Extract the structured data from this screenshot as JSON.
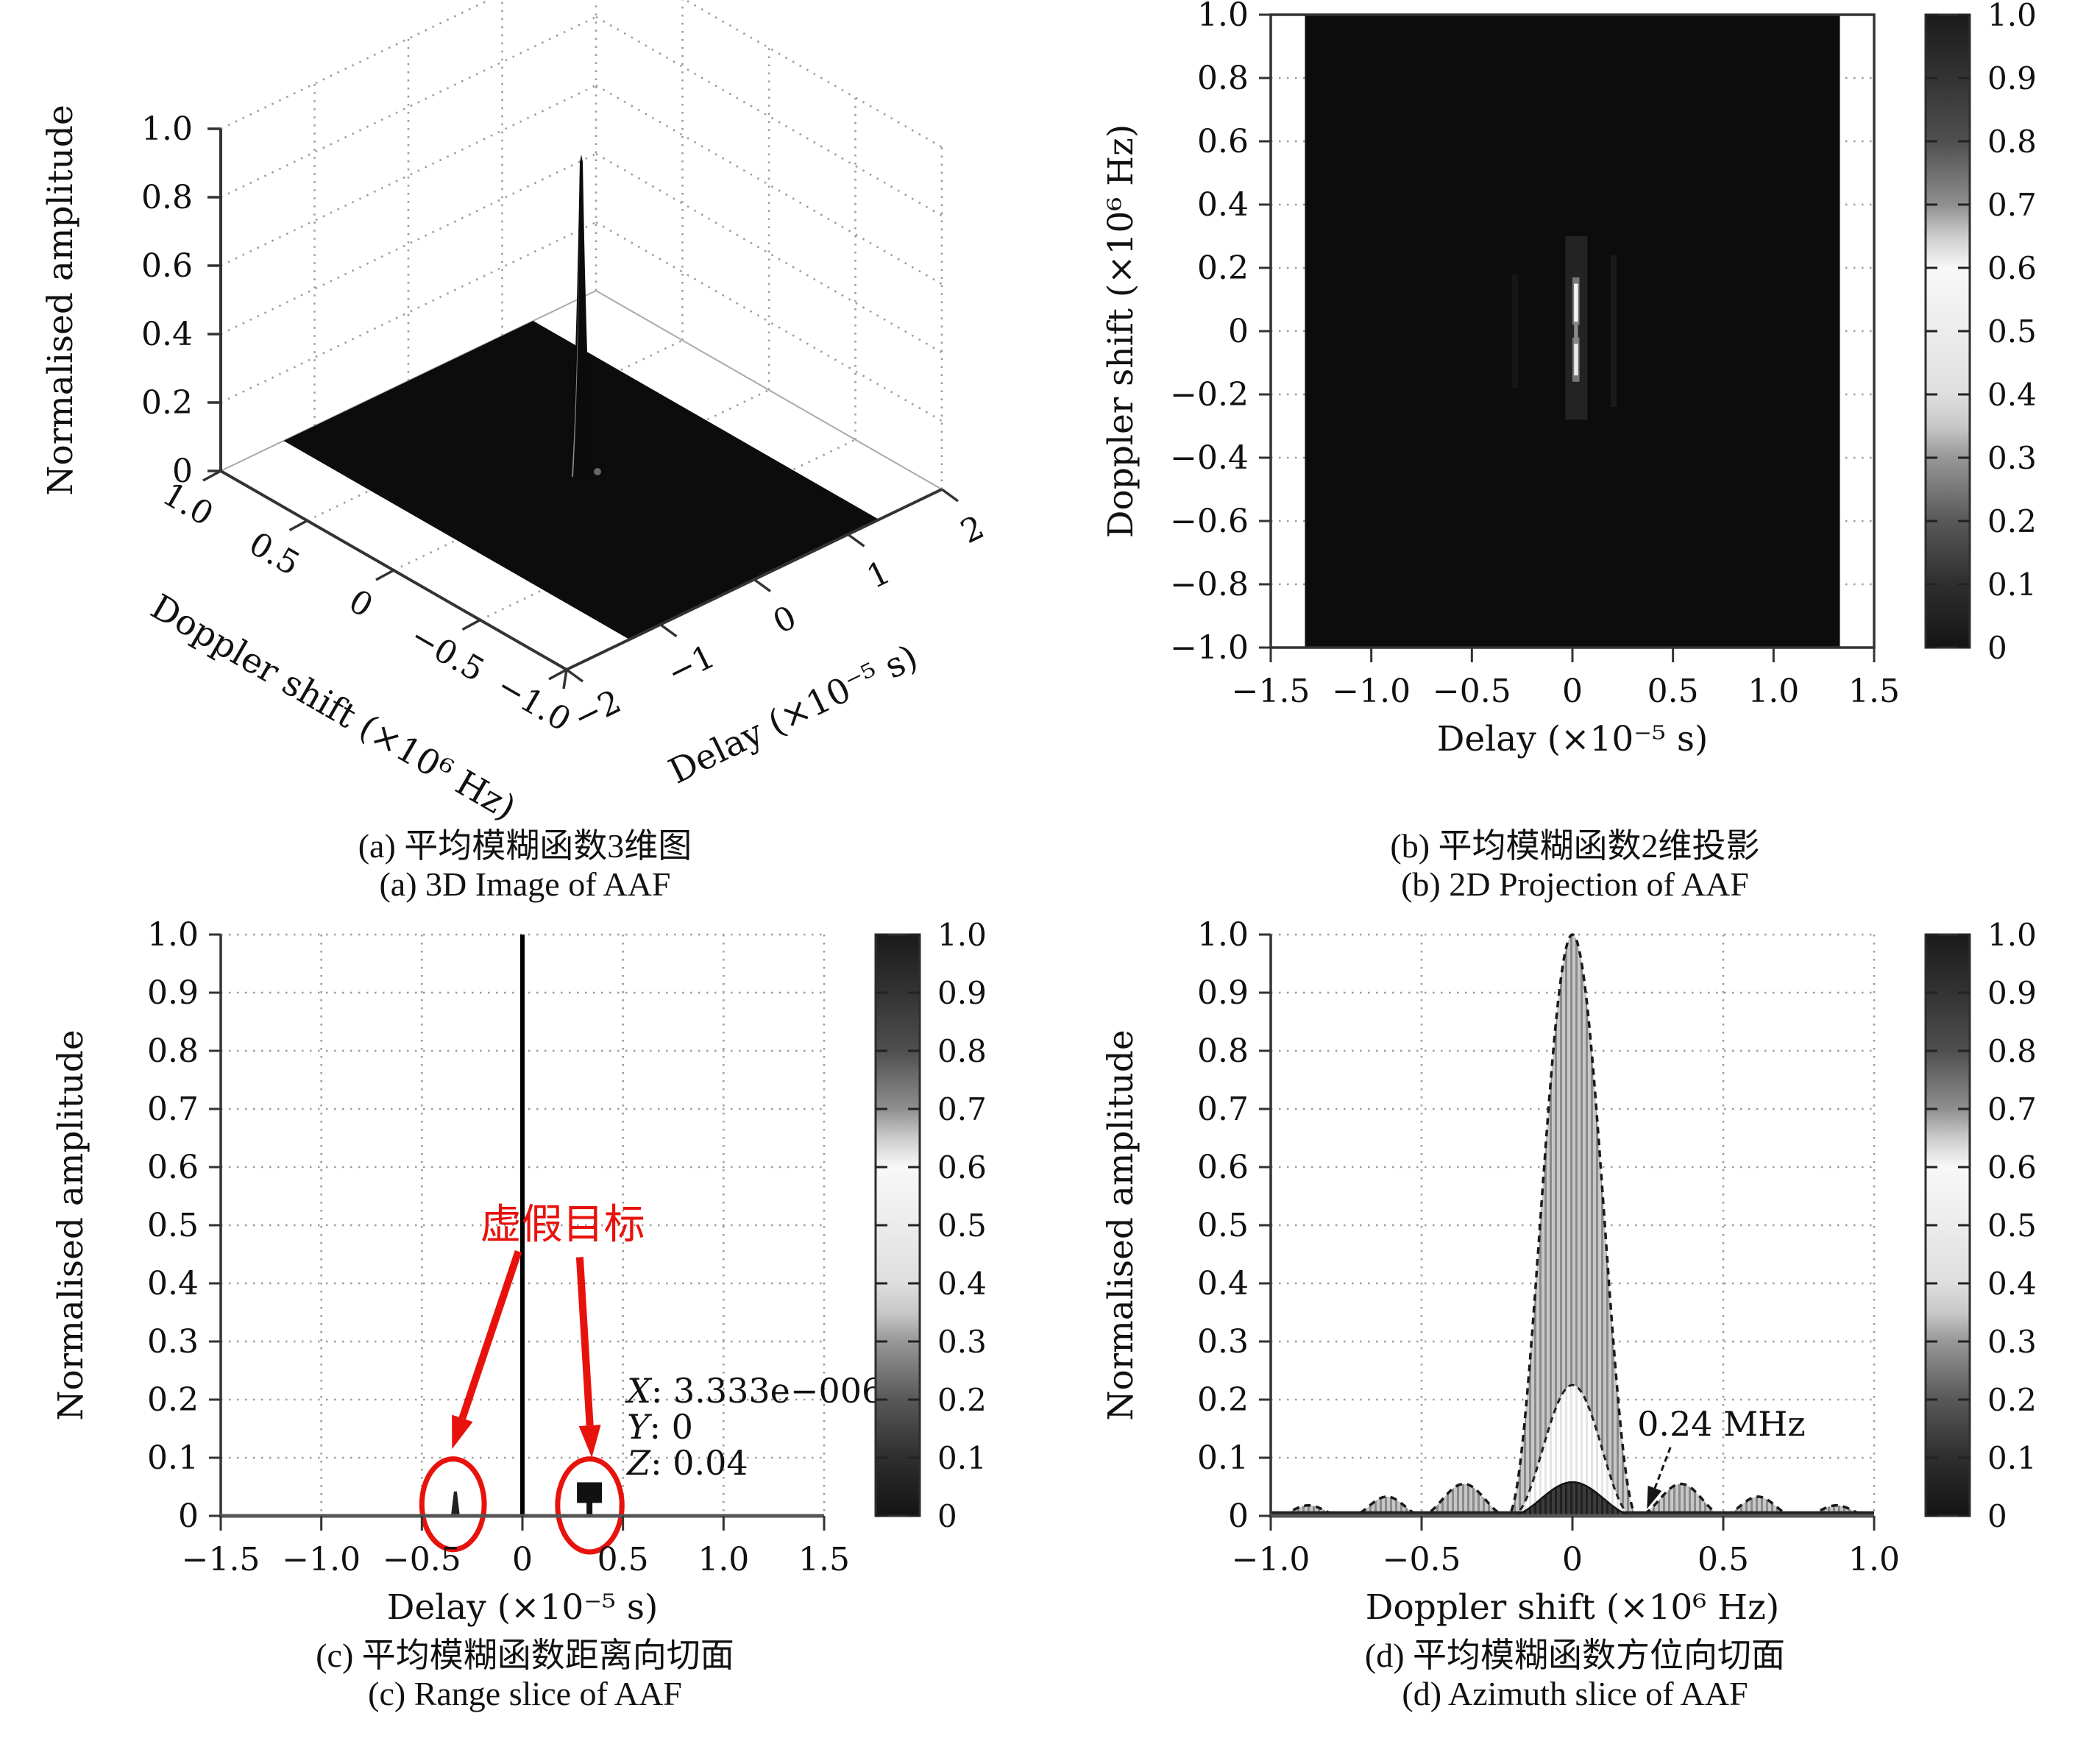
{
  "palette": {
    "red": "#e8120c",
    "text": "#111111",
    "axis": "#333333",
    "axis_light": "#555555",
    "grid": "#9b9b9b",
    "image_black": "#0c0c0c",
    "stripe_bg": "#c7c7c7",
    "stripe_bar": "#8a8a8a",
    "stripe_light_bg": "#ffffff",
    "stripe_light_bar": "#e4e4e4",
    "stripe_dark_bg": "#3c3c3c",
    "stripe_dark_bar": "#202020"
  },
  "colorbar": {
    "ticks": [
      "1.0",
      "0.9",
      "0.8",
      "0.7",
      "0.6",
      "0.5",
      "0.4",
      "0.3",
      "0.2",
      "0.1",
      "0"
    ],
    "gradient": [
      {
        "value": 1.0,
        "color": "#1a1a1a"
      },
      {
        "value": 0.9,
        "color": "#333333"
      },
      {
        "value": 0.8,
        "color": "#4f4f4f"
      },
      {
        "value": 0.7,
        "color": "#8f8f8f"
      },
      {
        "value": 0.65,
        "color": "#cccccc"
      },
      {
        "value": 0.6,
        "color": "#f8f8f8"
      },
      {
        "value": 0.5,
        "color": "#ececec"
      },
      {
        "value": 0.4,
        "color": "#dedede"
      },
      {
        "value": 0.35,
        "color": "#c8c8c8"
      },
      {
        "value": 0.3,
        "color": "#979797"
      },
      {
        "value": 0.2,
        "color": "#585858"
      },
      {
        "value": 0.1,
        "color": "#2e2e2e"
      },
      {
        "value": 0.0,
        "color": "#141414"
      }
    ]
  },
  "chart_data": [
    {
      "id": "a",
      "type": "3d-surface",
      "caption_zh": "(a) 平均模糊函数3维图",
      "caption_en": "(a) 3D Image of AAF",
      "xlabel": "Delay (×10⁻⁵ s)",
      "ylabel": "Doppler shift (×10⁶ Hz)",
      "zlabel": "Normalised amplitude",
      "x_ticks": [
        "−2",
        "−1",
        "0",
        "1",
        "2"
      ],
      "x_values": [
        -2,
        -1,
        0,
        1,
        2
      ],
      "y_ticks": [
        "1.0",
        "0.5",
        "0",
        "−0.5",
        "−1.0"
      ],
      "y_values": [
        1,
        0.5,
        0,
        -0.5,
        -1
      ],
      "z_ticks": [
        "0",
        "0.2",
        "0.4",
        "0.6",
        "0.8",
        "1.0"
      ],
      "z_values": [
        0,
        0.2,
        0.4,
        0.6,
        0.8,
        1
      ],
      "xlim": [
        -2,
        2
      ],
      "ylim": [
        -1,
        1
      ],
      "zlim": [
        0,
        1
      ],
      "grid": true,
      "surface": {
        "footprint_delay": [
          -1.33,
          1.33
        ],
        "footprint_doppler": [
          -1,
          1
        ],
        "floor_value": 0,
        "peak": {
          "delay": 0,
          "doppler": 0,
          "amplitude": 0.95
        }
      }
    },
    {
      "id": "b",
      "type": "heatmap",
      "caption_zh": "(b) 平均模糊函数2维投影",
      "caption_en": "(b) 2D Projection of AAF",
      "xlabel": "Delay (×10⁻⁵ s)",
      "ylabel": "Doppler shift (×10⁶ Hz)",
      "x_ticks": [
        "−1.5",
        "−1.0",
        "−0.5",
        "0",
        "0.5",
        "1.0",
        "1.5"
      ],
      "x_values": [
        -1.5,
        -1,
        -0.5,
        0,
        0.5,
        1,
        1.5
      ],
      "y_ticks": [
        "1.0",
        "0.8",
        "0.6",
        "0.4",
        "0.2",
        "0",
        "−0.2",
        "−0.4",
        "−0.6",
        "−0.8",
        "−1.0"
      ],
      "y_values": [
        1,
        0.8,
        0.6,
        0.4,
        0.2,
        0,
        -0.2,
        -0.4,
        -0.6,
        -0.8,
        -1
      ],
      "xlim": [
        -1.5,
        1.5
      ],
      "ylim": [
        -1,
        1
      ],
      "grid": true,
      "image": {
        "delay_extent": [
          -1.33,
          1.33
        ],
        "doppler_extent": [
          -1,
          1
        ],
        "background_value": 0,
        "mainlobe": {
          "delay": 0,
          "doppler_span": [
            -0.2,
            0.27
          ],
          "value": 1
        }
      },
      "streaks": [
        {
          "d0": -0.3,
          "d1": -0.27,
          "f0": -0.18,
          "f1": 0.18,
          "color": "#161616"
        },
        {
          "d0": 0.19,
          "d1": 0.22,
          "f0": -0.24,
          "f1": 0.24,
          "color": "#1a1a1a"
        },
        {
          "d0": -0.035,
          "d1": 0.075,
          "f0": -0.28,
          "f1": 0.3,
          "color": "#232323"
        },
        {
          "d0": 0.0,
          "d1": 0.035,
          "f0": 0.02,
          "f1": 0.17,
          "color": "#777777"
        },
        {
          "d0": 0.0,
          "d1": 0.035,
          "f0": -0.16,
          "f1": -0.02,
          "color": "#777777"
        },
        {
          "d0": 0.008,
          "d1": 0.028,
          "f0": -0.05,
          "f1": 0.04,
          "color": "#8a8a8a"
        },
        {
          "d0": 0.008,
          "d1": 0.028,
          "f0": 0.03,
          "f1": 0.15,
          "color": "#f4f4f4"
        },
        {
          "d0": 0.008,
          "d1": 0.028,
          "f0": -0.14,
          "f1": -0.04,
          "color": "#ebebeb"
        }
      ],
      "colorbar_range": [
        0,
        1
      ]
    },
    {
      "id": "c",
      "type": "line",
      "caption_zh": "(c) 平均模糊函数距离向切面",
      "caption_en": "(c) Range slice of AAF",
      "xlabel": "Delay (×10⁻⁵ s)",
      "ylabel": "Normalised amplitude",
      "x_ticks": [
        "−1.5",
        "−1.0",
        "−0.5",
        "0",
        "0.5",
        "1.0",
        "1.5"
      ],
      "x_values": [
        -1.5,
        -1,
        -0.5,
        0,
        0.5,
        1,
        1.5
      ],
      "y_ticks": [
        "0",
        "0.1",
        "0.2",
        "0.3",
        "0.4",
        "0.5",
        "0.6",
        "0.7",
        "0.8",
        "0.9",
        "1.0"
      ],
      "y_values": [
        0,
        0.1,
        0.2,
        0.3,
        0.4,
        0.5,
        0.6,
        0.7,
        0.8,
        0.9,
        1
      ],
      "xlim": [
        -1.5,
        1.5
      ],
      "ylim": [
        0,
        1
      ],
      "grid": true,
      "spikes": [
        {
          "x": 0,
          "y": 1.0,
          "style": "main"
        },
        {
          "x": -0.3333,
          "y": 0.042,
          "style": "needle"
        },
        {
          "x": 0.3333,
          "y": 0.04,
          "style": "marker"
        },
        {
          "x": 0.49,
          "y": 0.018,
          "style": "minor"
        }
      ],
      "annotations": {
        "false_target_label": "虚假目标",
        "label_pos": {
          "x": 0.2,
          "y": 0.5
        },
        "arrows": [
          {
            "from": [
              -0.02,
              0.455
            ],
            "to": [
              -0.35,
              0.115
            ]
          },
          {
            "from": [
              0.285,
              0.445
            ],
            "to": [
              0.345,
              0.1
            ]
          }
        ],
        "ellipses": [
          {
            "cx": -0.345,
            "cy": 0.02,
            "rx": 0.155,
            "ry": 0.078
          },
          {
            "cx": 0.335,
            "cy": 0.018,
            "rx": 0.16,
            "ry": 0.08
          }
        ],
        "datatip": [
          {
            "var": "X",
            "text": ": 3.333e−006"
          },
          {
            "var": "Y",
            "text": ": 0"
          },
          {
            "var": "Z",
            "text": ": 0.04"
          }
        ],
        "datatip_pos": {
          "x": 0.52,
          "y": 0.195
        }
      },
      "colorbar_range": [
        0,
        1
      ]
    },
    {
      "id": "d",
      "type": "line",
      "caption_zh": "(d) 平均模糊函数方位向切面",
      "caption_en": "(d) Azimuth slice of AAF",
      "xlabel": "Doppler shift (×10⁶ Hz)",
      "ylabel": "Normalised amplitude",
      "x_ticks": [
        "−1.0",
        "−0.5",
        "0",
        "0.5",
        "1.0"
      ],
      "x_values": [
        -1,
        -0.5,
        0,
        0.5,
        1
      ],
      "y_ticks": [
        "0",
        "0.1",
        "0.2",
        "0.3",
        "0.4",
        "0.5",
        "0.6",
        "0.7",
        "0.8",
        "0.9",
        "1.0"
      ],
      "y_values": [
        0,
        0.1,
        0.2,
        0.3,
        0.4,
        0.5,
        0.6,
        0.7,
        0.8,
        0.9,
        1
      ],
      "xlim": [
        -1,
        1
      ],
      "ylim": [
        0,
        1
      ],
      "grid": true,
      "lobes": {
        "outer": [
          {
            "center": 0,
            "height": 1.0,
            "half_width": 0.215
          },
          {
            "center": -0.36,
            "height": 0.055,
            "half_width": 0.145
          },
          {
            "center": 0.36,
            "height": 0.055,
            "half_width": 0.145
          },
          {
            "center": -0.615,
            "height": 0.033,
            "half_width": 0.12
          },
          {
            "center": 0.615,
            "height": 0.033,
            "half_width": 0.12
          },
          {
            "center": -0.875,
            "height": 0.018,
            "half_width": 0.11
          },
          {
            "center": 0.875,
            "height": 0.018,
            "half_width": 0.11
          }
        ],
        "inner_envelope": {
          "center": 0,
          "height": 0.225,
          "half_width": 0.2
        },
        "pedestal": {
          "center": 0,
          "height": 0.058,
          "half_width": 0.21
        }
      },
      "annotations": {
        "bandwidth_label": "0.24 MHz",
        "label_pos": {
          "x": 0.215,
          "y": 0.138
        },
        "arrow": {
          "from": [
            0.325,
            0.118
          ],
          "to": [
            0.247,
            0.012
          ]
        }
      },
      "colorbar_range": [
        0,
        1
      ]
    }
  ]
}
